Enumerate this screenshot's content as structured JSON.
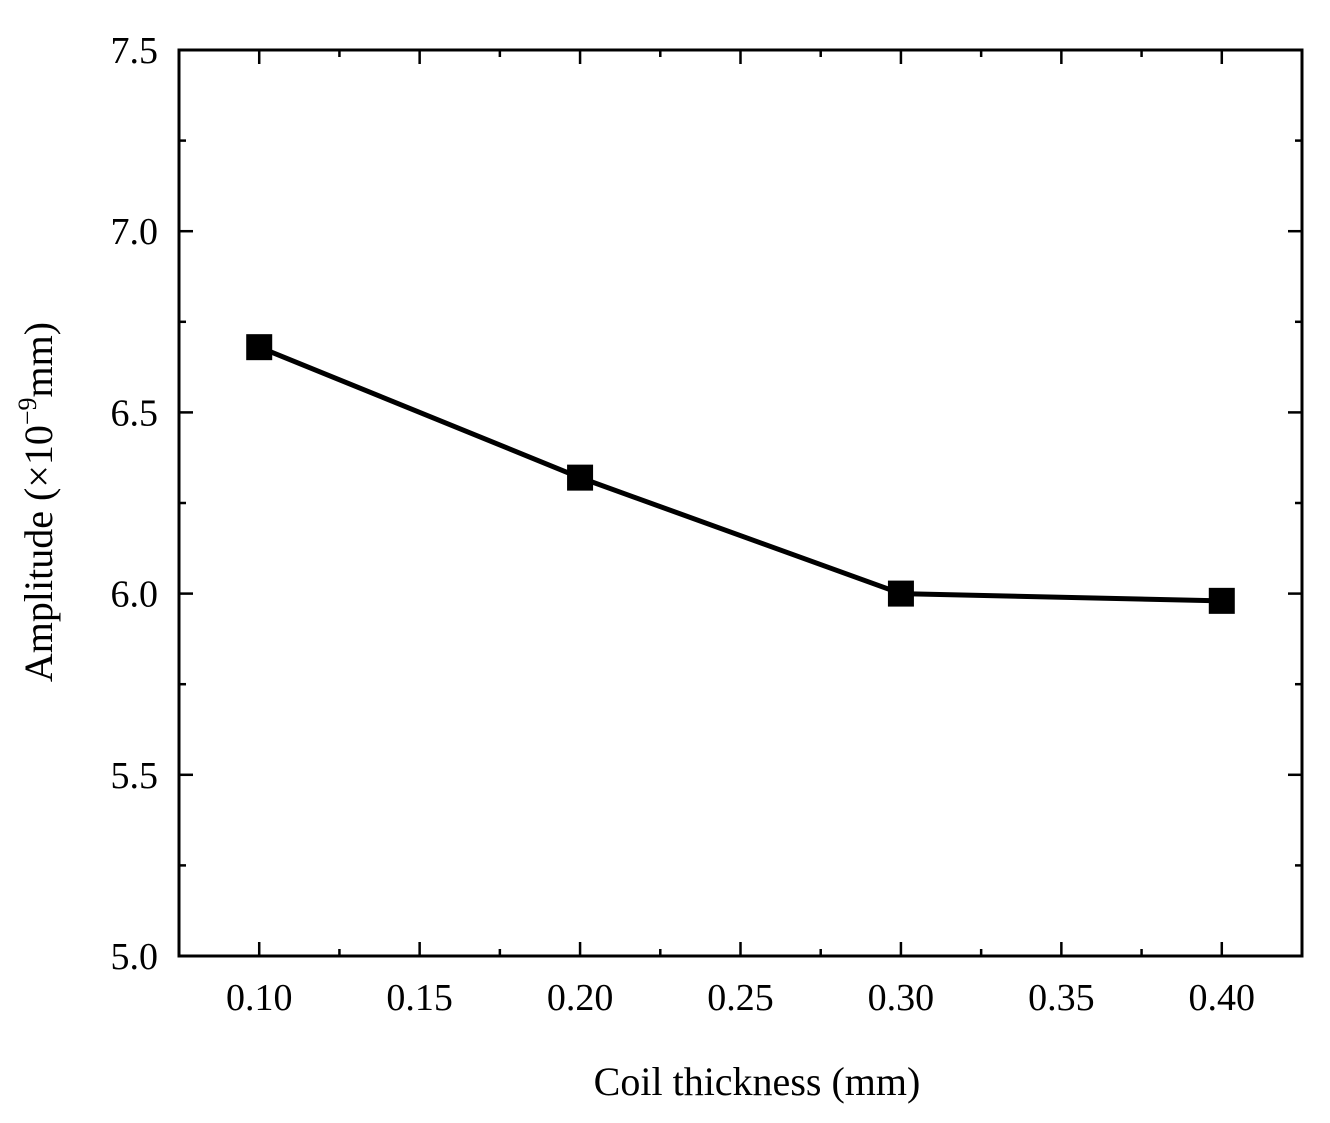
{
  "chart_data": {
    "type": "line",
    "title": "",
    "xlabel": "Coil thickness (mm)",
    "ylabel_prefix": "Amplitude (×10",
    "ylabel_exponent": "−9",
    "ylabel_suffix": "mm)",
    "xlim": [
      0.075,
      0.425
    ],
    "ylim": [
      5.0,
      7.5
    ],
    "x_ticks": [
      0.1,
      0.15,
      0.2,
      0.25,
      0.3,
      0.35,
      0.4
    ],
    "x_tick_labels": [
      "0.10",
      "0.15",
      "0.20",
      "0.25",
      "0.30",
      "0.35",
      "0.40"
    ],
    "x_minor_ticks": [
      0.125,
      0.175,
      0.225,
      0.275,
      0.325,
      0.375
    ],
    "y_ticks": [
      5.0,
      5.5,
      6.0,
      6.5,
      7.0,
      7.5
    ],
    "y_tick_labels": [
      "5.0",
      "5.5",
      "6.0",
      "6.5",
      "7.0",
      "7.5"
    ],
    "y_minor_ticks": [
      5.25,
      5.75,
      6.25,
      6.75,
      7.25
    ],
    "grid": false,
    "series": [
      {
        "name": "Amplitude",
        "marker": "square",
        "color": "#000000",
        "x": [
          0.1,
          0.2,
          0.3,
          0.4
        ],
        "y": [
          6.68,
          6.32,
          6.0,
          5.98
        ]
      }
    ]
  }
}
